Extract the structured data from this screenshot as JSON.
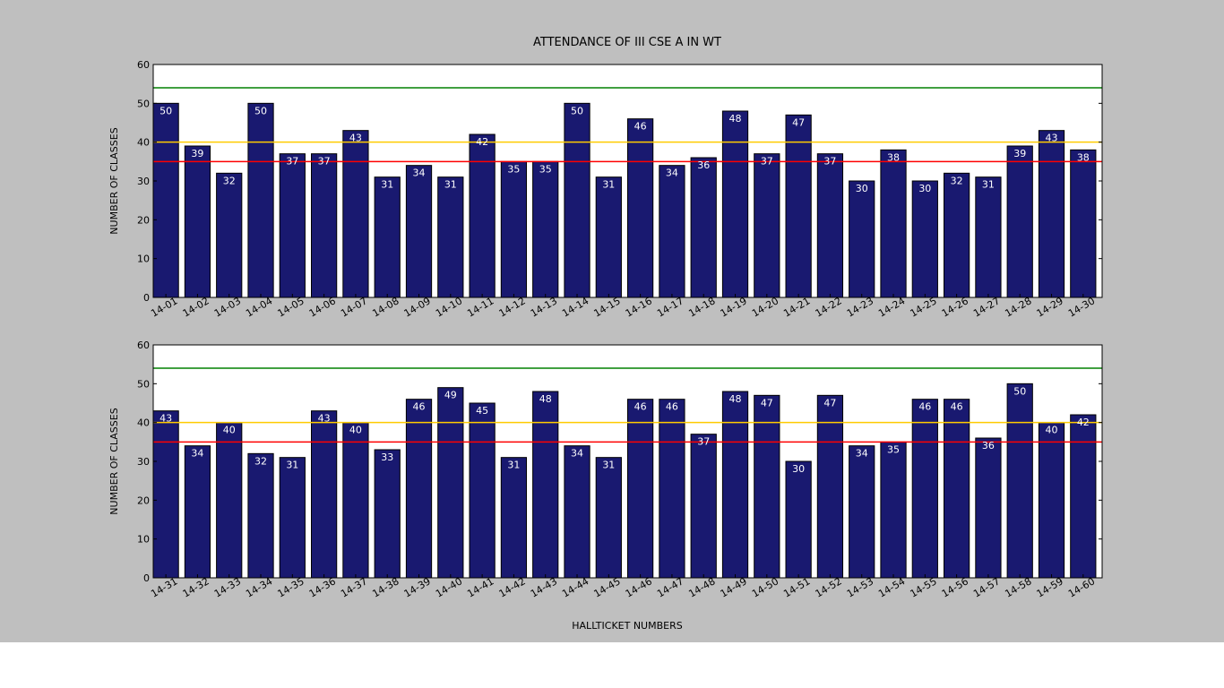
{
  "chart_data": {
    "type": "bar",
    "title": "ATTENDANCE OF III CSE A IN WT",
    "xlabel": "HALLTICKET NUMBERS",
    "colors": {
      "bar": "#191970",
      "green_line": "#008000",
      "yellow_line": "#ffcc00",
      "red_line": "#ff0000",
      "background": "#bfbfbf"
    },
    "reference_lines": [
      {
        "value": 54,
        "color": "#008000"
      },
      {
        "value": 40,
        "color": "#ffcc00"
      },
      {
        "value": 35,
        "color": "#ff0000"
      }
    ],
    "subplots": [
      {
        "ylabel": "NUMBER OF CLASSES",
        "ylim": [
          0,
          60
        ],
        "yticks": [
          0,
          10,
          20,
          30,
          40,
          50,
          60
        ],
        "categories": [
          "14-01",
          "14-02",
          "14-03",
          "14-04",
          "14-05",
          "14-06",
          "14-07",
          "14-08",
          "14-09",
          "14-10",
          "14-11",
          "14-12",
          "14-13",
          "14-14",
          "14-15",
          "14-16",
          "14-17",
          "14-18",
          "14-19",
          "14-20",
          "14-21",
          "14-22",
          "14-23",
          "14-24",
          "14-25",
          "14-26",
          "14-27",
          "14-28",
          "14-29",
          "14-30"
        ],
        "values": [
          50,
          39,
          32,
          50,
          37,
          37,
          43,
          31,
          34,
          31,
          42,
          35,
          35,
          50,
          31,
          46,
          34,
          36,
          48,
          37,
          47,
          37,
          30,
          38,
          30,
          32,
          31,
          39,
          43,
          38
        ]
      },
      {
        "ylabel": "NUMBER OF CLASSES",
        "ylim": [
          0,
          60
        ],
        "yticks": [
          0,
          10,
          20,
          30,
          40,
          50,
          60
        ],
        "categories": [
          "14-31",
          "14-32",
          "14-33",
          "14-34",
          "14-35",
          "14-36",
          "14-37",
          "14-38",
          "14-39",
          "14-40",
          "14-41",
          "14-42",
          "14-43",
          "14-44",
          "14-45",
          "14-46",
          "14-47",
          "14-48",
          "14-49",
          "14-50",
          "14-51",
          "14-52",
          "14-53",
          "14-54",
          "14-55",
          "14-56",
          "14-57",
          "14-58",
          "14-59",
          "14-60"
        ],
        "values": [
          43,
          34,
          40,
          32,
          31,
          43,
          40,
          33,
          46,
          49,
          45,
          31,
          48,
          34,
          31,
          46,
          46,
          37,
          48,
          47,
          30,
          47,
          34,
          35,
          46,
          46,
          36,
          50,
          40,
          42
        ]
      }
    ]
  }
}
